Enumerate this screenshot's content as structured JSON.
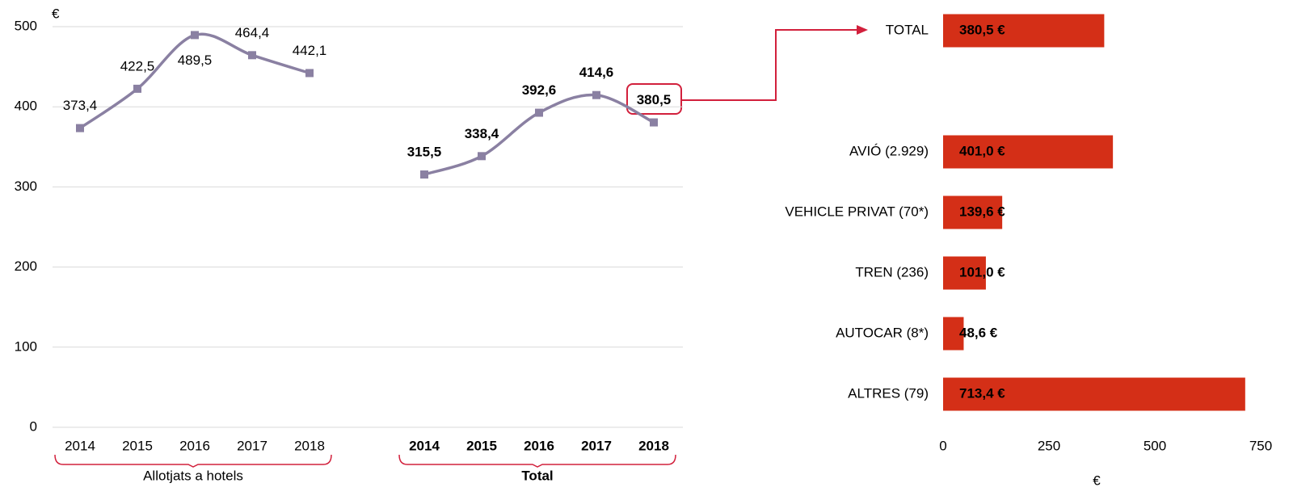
{
  "chart_data": [
    {
      "type": "line",
      "y_label": "€",
      "categories": [
        "2014",
        "2015",
        "2016",
        "2017",
        "2018",
        null,
        "2014",
        "2015",
        "2016",
        "2017",
        "2018"
      ],
      "series": [
        {
          "name": "Allotjats a hotels",
          "color": "#8a80a2",
          "values": [
            373.4,
            422.5,
            489.5,
            464.4,
            442.1,
            null,
            null,
            null,
            null,
            null,
            null
          ],
          "value_labels": [
            "373,4",
            "422,5",
            "489,5",
            "464,4",
            "442,1",
            null,
            null,
            null,
            null,
            null,
            null
          ]
        },
        {
          "name": "Total",
          "color": "#8a80a2",
          "values": [
            null,
            null,
            null,
            null,
            null,
            null,
            315.5,
            338.4,
            392.6,
            414.6,
            380.5
          ],
          "value_labels": [
            null,
            null,
            null,
            null,
            null,
            null,
            "315,5",
            "338,4",
            "392,6",
            "414,6",
            "380,5"
          ]
        }
      ],
      "ylim": [
        0,
        500
      ],
      "yticks": [
        0,
        100,
        200,
        300,
        400,
        500
      ],
      "grid": true,
      "group_color": "#d2203c"
    },
    {
      "type": "barh",
      "x_label": "€",
      "categories": [
        "TOTAL",
        "AVIÓ (2.929)",
        "VEHICLE PRIVAT (70*)",
        "TREN (236)",
        "AUTOCAR (8*)",
        "ALTRES (79)"
      ],
      "values": [
        380.5,
        401.0,
        139.6,
        101.0,
        48.6,
        713.4
      ],
      "value_labels": [
        "380,5 €",
        "401,0 €",
        "139,6 €",
        "101,0 €",
        "48,6 €",
        "713,4 €"
      ],
      "color": "#d42f17",
      "xlim": [
        0,
        750
      ],
      "xticks": [
        0,
        250,
        500,
        750
      ]
    }
  ]
}
